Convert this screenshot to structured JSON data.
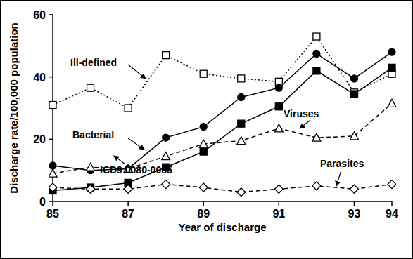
{
  "chart_data": {
    "type": "line",
    "x_label": "Year of discharge",
    "y_label": "Discharge rate/100,000 population",
    "x": [
      85,
      86,
      87,
      88,
      89,
      90,
      91,
      92,
      93,
      94
    ],
    "xlim": [
      85,
      94
    ],
    "xticks": [
      85,
      87,
      89,
      91,
      93,
      94
    ],
    "ylim": [
      0,
      60
    ],
    "yticks": [
      0,
      20,
      40,
      60
    ],
    "grid": false,
    "series": [
      {
        "name": "Ill-defined",
        "color": "#000000",
        "marker": "square-open",
        "line_style": "dotted",
        "values": [
          31,
          36.5,
          30,
          47,
          41,
          39.5,
          38.5,
          53,
          35,
          41
        ]
      },
      {
        "name": "Bacterial",
        "color": "#000000",
        "marker": "circle",
        "line_style": "solid",
        "values": [
          11.5,
          10,
          10.5,
          20.5,
          24,
          33.5,
          36.5,
          47.5,
          39.5,
          48
        ]
      },
      {
        "name": "ICD9 0080-0085",
        "color": "#000000",
        "marker": "square",
        "line_style": "solid",
        "values": [
          3.5,
          4.5,
          6,
          11,
          16,
          25,
          30.5,
          42,
          34.5,
          43
        ]
      },
      {
        "name": "Viruses",
        "color": "#000000",
        "marker": "triangle-open",
        "line_style": "dashed",
        "values": [
          9,
          11,
          10.5,
          14.5,
          18.5,
          19.5,
          23.5,
          20.5,
          21,
          31.5
        ]
      },
      {
        "name": "Parasites",
        "color": "#000000",
        "marker": "diamond-open",
        "line_style": "dashed",
        "values": [
          4.5,
          4,
          4,
          5.5,
          4.5,
          3,
          4,
          5,
          4,
          5.5
        ]
      }
    ]
  }
}
